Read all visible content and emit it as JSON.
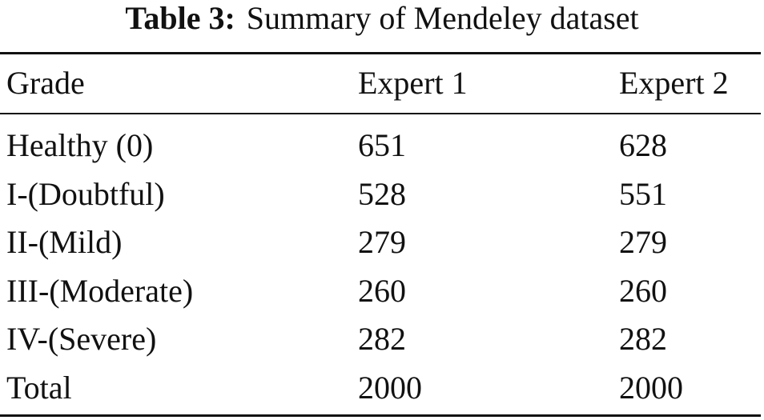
{
  "caption": {
    "label": "Table 3:",
    "text": "Summary of Mendeley dataset"
  },
  "table": {
    "header": [
      "Grade",
      "Expert 1",
      "Expert 2"
    ],
    "rows": [
      [
        "Healthy (0)",
        651,
        628
      ],
      [
        "I-(Doubtful)",
        528,
        551
      ],
      [
        "II-(Mild)",
        279,
        279
      ],
      [
        "III-(Moderate)",
        260,
        260
      ],
      [
        "IV-(Severe)",
        282,
        282
      ],
      [
        "Total",
        2000,
        2000
      ]
    ]
  }
}
